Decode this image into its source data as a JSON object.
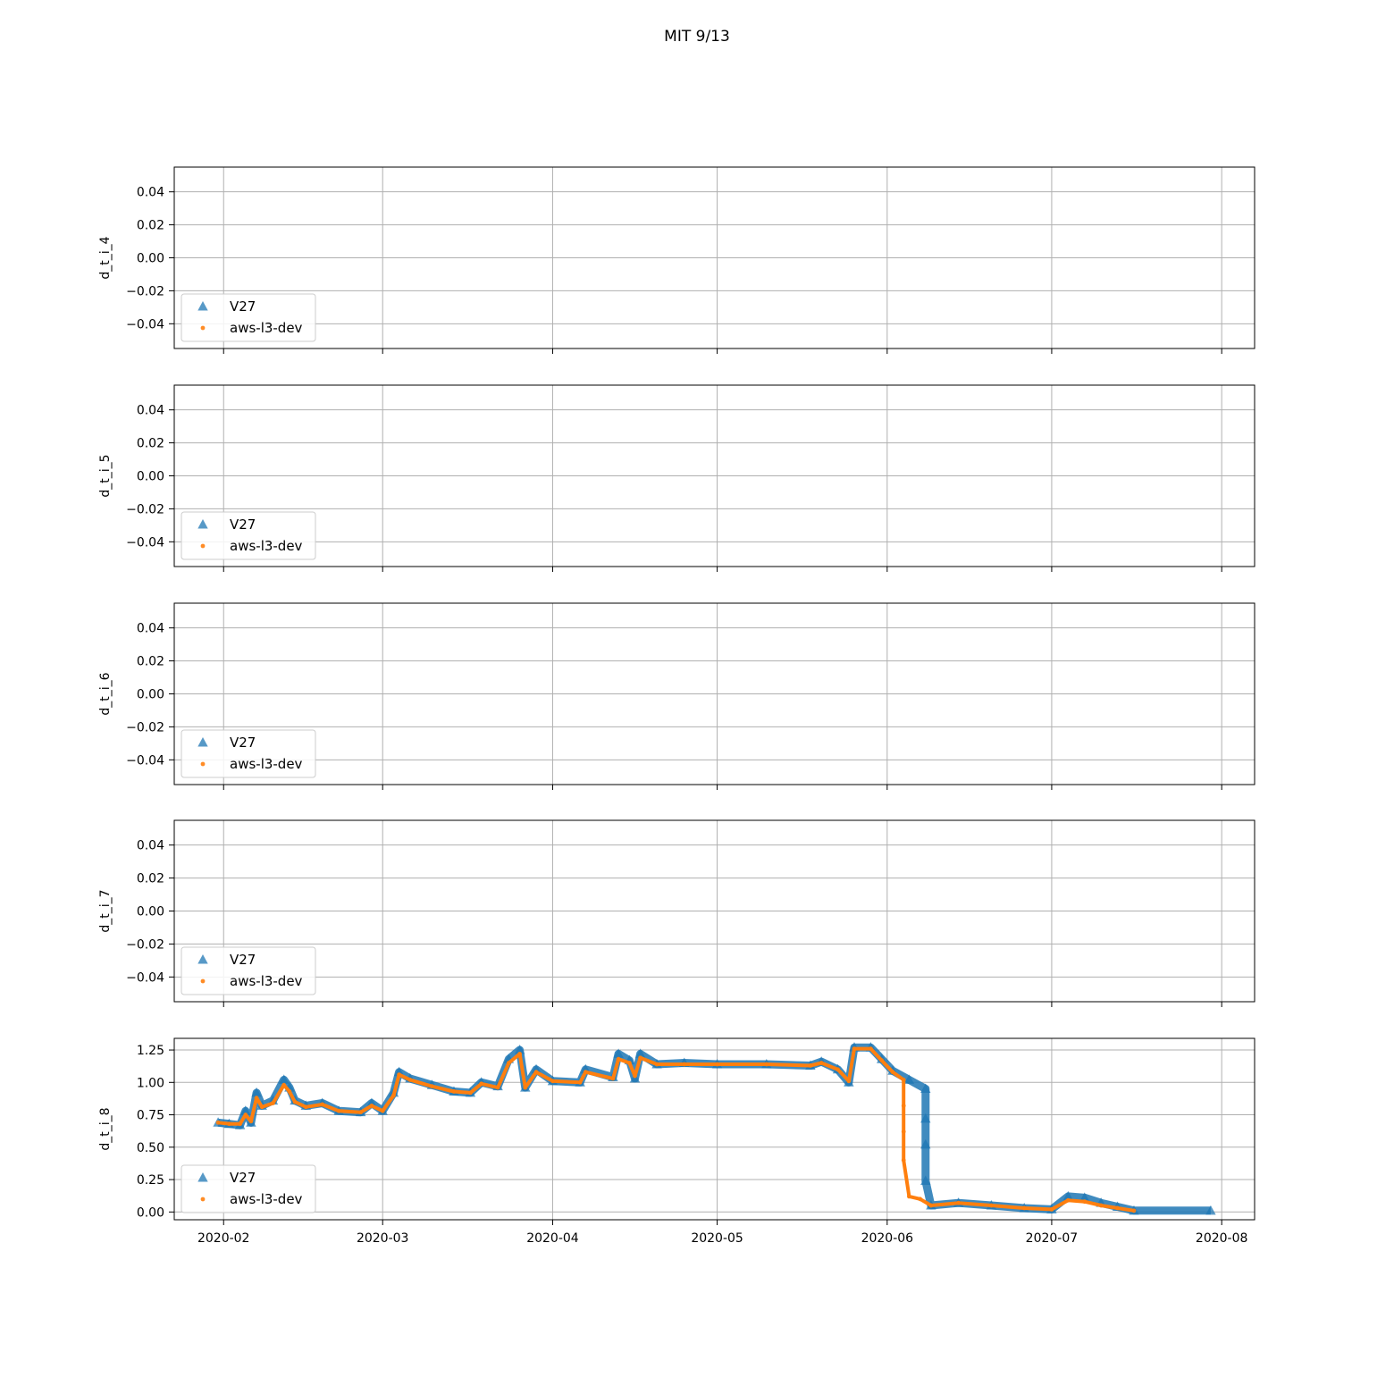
{
  "figure": {
    "suptitle": "MIT 9/13"
  },
  "chart_data": [
    {
      "type": "scatter",
      "ylabel": "d_t_i_4",
      "ylim": [
        -0.055,
        0.055
      ],
      "yticks": [
        0.04,
        0.02,
        0.0,
        -0.02,
        -0.04
      ],
      "ytick_labels": [
        "0.04",
        "0.02",
        "0.00",
        "−0.02",
        "−0.04"
      ],
      "xlim": [
        "2020-01-23",
        "2020-08-07"
      ],
      "xticks": [
        "2020-02-01",
        "2020-03-01",
        "2020-04-01",
        "2020-05-01",
        "2020-06-01",
        "2020-07-01",
        "2020-08-01"
      ],
      "xtick_labels_visible": false,
      "grid": true,
      "legend": "lower-left",
      "series": [
        {
          "name": "V27",
          "marker": "triangle",
          "color": "#1f77b4",
          "points": []
        },
        {
          "name": "aws-l3-dev",
          "marker": "dot",
          "color": "#ff7f0e",
          "points": []
        }
      ]
    },
    {
      "type": "scatter",
      "ylabel": "d_t_i_5",
      "ylim": [
        -0.055,
        0.055
      ],
      "yticks": [
        0.04,
        0.02,
        0.0,
        -0.02,
        -0.04
      ],
      "ytick_labels": [
        "0.04",
        "0.02",
        "0.00",
        "−0.02",
        "−0.04"
      ],
      "xlim": [
        "2020-01-23",
        "2020-08-07"
      ],
      "xticks": [
        "2020-02-01",
        "2020-03-01",
        "2020-04-01",
        "2020-05-01",
        "2020-06-01",
        "2020-07-01",
        "2020-08-01"
      ],
      "xtick_labels_visible": false,
      "grid": true,
      "legend": "lower-left",
      "series": [
        {
          "name": "V27",
          "marker": "triangle",
          "color": "#1f77b4",
          "points": []
        },
        {
          "name": "aws-l3-dev",
          "marker": "dot",
          "color": "#ff7f0e",
          "points": []
        }
      ]
    },
    {
      "type": "scatter",
      "ylabel": "d_t_i_6",
      "ylim": [
        -0.055,
        0.055
      ],
      "yticks": [
        0.04,
        0.02,
        0.0,
        -0.02,
        -0.04
      ],
      "ytick_labels": [
        "0.04",
        "0.02",
        "0.00",
        "−0.02",
        "−0.04"
      ],
      "xlim": [
        "2020-01-23",
        "2020-08-07"
      ],
      "xticks": [
        "2020-02-01",
        "2020-03-01",
        "2020-04-01",
        "2020-05-01",
        "2020-06-01",
        "2020-07-01",
        "2020-08-01"
      ],
      "xtick_labels_visible": false,
      "grid": true,
      "legend": "lower-left",
      "series": [
        {
          "name": "V27",
          "marker": "triangle",
          "color": "#1f77b4",
          "points": []
        },
        {
          "name": "aws-l3-dev",
          "marker": "dot",
          "color": "#ff7f0e",
          "points": []
        }
      ]
    },
    {
      "type": "scatter",
      "ylabel": "d_t_i_7",
      "ylim": [
        -0.055,
        0.055
      ],
      "yticks": [
        0.04,
        0.02,
        0.0,
        -0.02,
        -0.04
      ],
      "ytick_labels": [
        "0.04",
        "0.02",
        "0.00",
        "−0.02",
        "−0.04"
      ],
      "xlim": [
        "2020-01-23",
        "2020-08-07"
      ],
      "xticks": [
        "2020-02-01",
        "2020-03-01",
        "2020-04-01",
        "2020-05-01",
        "2020-06-01",
        "2020-07-01",
        "2020-08-01"
      ],
      "xtick_labels_visible": false,
      "grid": true,
      "legend": "lower-left",
      "series": [
        {
          "name": "V27",
          "marker": "triangle",
          "color": "#1f77b4",
          "points": []
        },
        {
          "name": "aws-l3-dev",
          "marker": "dot",
          "color": "#ff7f0e",
          "points": []
        }
      ]
    },
    {
      "type": "scatter",
      "ylabel": "d_t_i_8",
      "ylim": [
        -0.06,
        1.34
      ],
      "yticks": [
        1.25,
        1.0,
        0.75,
        0.5,
        0.25,
        0.0
      ],
      "ytick_labels": [
        "1.25",
        "1.00",
        "0.75",
        "0.50",
        "0.25",
        "0.00"
      ],
      "xlim": [
        "2020-01-23",
        "2020-08-07"
      ],
      "xticks": [
        "2020-02-01",
        "2020-03-01",
        "2020-04-01",
        "2020-05-01",
        "2020-06-01",
        "2020-07-01",
        "2020-08-01"
      ],
      "xtick_labels": [
        "2020-02",
        "2020-03",
        "2020-04",
        "2020-05",
        "2020-06",
        "2020-07",
        "2020-08"
      ],
      "xtick_labels_visible": true,
      "grid": true,
      "legend": "lower-left",
      "series": [
        {
          "name": "V27",
          "marker": "triangle",
          "color": "#1f77b4",
          "points": [
            [
              "2020-01-31",
              0.69
            ],
            [
              "2020-02-02",
              0.68
            ],
            [
              "2020-02-04",
              0.67
            ],
            [
              "2020-02-05",
              0.78
            ],
            [
              "2020-02-06",
              0.69
            ],
            [
              "2020-02-07",
              0.92
            ],
            [
              "2020-02-08",
              0.82
            ],
            [
              "2020-02-10",
              0.86
            ],
            [
              "2020-02-12",
              1.02
            ],
            [
              "2020-02-13",
              0.96
            ],
            [
              "2020-02-14",
              0.86
            ],
            [
              "2020-02-16",
              0.82
            ],
            [
              "2020-02-19",
              0.84
            ],
            [
              "2020-02-22",
              0.78
            ],
            [
              "2020-02-26",
              0.77
            ],
            [
              "2020-02-28",
              0.84
            ],
            [
              "2020-03-01",
              0.78
            ],
            [
              "2020-03-03",
              0.92
            ],
            [
              "2020-03-04",
              1.08
            ],
            [
              "2020-03-06",
              1.03
            ],
            [
              "2020-03-10",
              0.98
            ],
            [
              "2020-03-14",
              0.93
            ],
            [
              "2020-03-17",
              0.92
            ],
            [
              "2020-03-19",
              1.0
            ],
            [
              "2020-03-22",
              0.97
            ],
            [
              "2020-03-24",
              1.18
            ],
            [
              "2020-03-26",
              1.25
            ],
            [
              "2020-03-27",
              0.96
            ],
            [
              "2020-03-29",
              1.1
            ],
            [
              "2020-04-01",
              1.01
            ],
            [
              "2020-04-06",
              1.0
            ],
            [
              "2020-04-07",
              1.1
            ],
            [
              "2020-04-12",
              1.04
            ],
            [
              "2020-04-13",
              1.22
            ],
            [
              "2020-04-15",
              1.17
            ],
            [
              "2020-04-16",
              1.03
            ],
            [
              "2020-04-17",
              1.22
            ],
            [
              "2020-04-20",
              1.14
            ],
            [
              "2020-04-25",
              1.15
            ],
            [
              "2020-05-01",
              1.14
            ],
            [
              "2020-05-10",
              1.14
            ],
            [
              "2020-05-18",
              1.13
            ],
            [
              "2020-05-20",
              1.16
            ],
            [
              "2020-05-23",
              1.1
            ],
            [
              "2020-05-25",
              1.0
            ],
            [
              "2020-05-26",
              1.27
            ],
            [
              "2020-05-29",
              1.27
            ],
            [
              "2020-05-31",
              1.18
            ],
            [
              "2020-06-02",
              1.09
            ],
            [
              "2020-06-05",
              1.02
            ],
            [
              "2020-06-08",
              0.95
            ],
            [
              "2020-06-08",
              0.72
            ],
            [
              "2020-06-08",
              0.52
            ],
            [
              "2020-06-08",
              0.24
            ],
            [
              "2020-06-09",
              0.05
            ],
            [
              "2020-06-14",
              0.07
            ],
            [
              "2020-06-20",
              0.05
            ],
            [
              "2020-06-26",
              0.03
            ],
            [
              "2020-07-01",
              0.02
            ],
            [
              "2020-07-04",
              0.12
            ],
            [
              "2020-07-07",
              0.11
            ],
            [
              "2020-07-10",
              0.07
            ],
            [
              "2020-07-13",
              0.04
            ],
            [
              "2020-07-16",
              0.01
            ],
            [
              "2020-07-30",
              0.01
            ]
          ]
        },
        {
          "name": "aws-l3-dev",
          "marker": "dot",
          "color": "#ff7f0e",
          "points": [
            [
              "2020-01-31",
              0.69
            ],
            [
              "2020-02-02",
              0.68
            ],
            [
              "2020-02-04",
              0.68
            ],
            [
              "2020-02-05",
              0.75
            ],
            [
              "2020-02-06",
              0.7
            ],
            [
              "2020-02-07",
              0.88
            ],
            [
              "2020-02-08",
              0.81
            ],
            [
              "2020-02-10",
              0.84
            ],
            [
              "2020-02-12",
              0.98
            ],
            [
              "2020-02-13",
              0.93
            ],
            [
              "2020-02-14",
              0.85
            ],
            [
              "2020-02-16",
              0.81
            ],
            [
              "2020-02-19",
              0.83
            ],
            [
              "2020-02-22",
              0.78
            ],
            [
              "2020-02-26",
              0.77
            ],
            [
              "2020-02-28",
              0.82
            ],
            [
              "2020-03-01",
              0.78
            ],
            [
              "2020-03-03",
              0.9
            ],
            [
              "2020-03-04",
              1.06
            ],
            [
              "2020-03-06",
              1.02
            ],
            [
              "2020-03-10",
              0.97
            ],
            [
              "2020-03-14",
              0.93
            ],
            [
              "2020-03-17",
              0.92
            ],
            [
              "2020-03-19",
              0.99
            ],
            [
              "2020-03-22",
              0.96
            ],
            [
              "2020-03-24",
              1.15
            ],
            [
              "2020-03-26",
              1.22
            ],
            [
              "2020-03-27",
              0.96
            ],
            [
              "2020-03-29",
              1.08
            ],
            [
              "2020-04-01",
              1.01
            ],
            [
              "2020-04-06",
              1.0
            ],
            [
              "2020-04-07",
              1.08
            ],
            [
              "2020-04-12",
              1.03
            ],
            [
              "2020-04-13",
              1.18
            ],
            [
              "2020-04-15",
              1.15
            ],
            [
              "2020-04-16",
              1.05
            ],
            [
              "2020-04-17",
              1.19
            ],
            [
              "2020-04-20",
              1.14
            ],
            [
              "2020-04-25",
              1.14
            ],
            [
              "2020-05-01",
              1.14
            ],
            [
              "2020-05-10",
              1.14
            ],
            [
              "2020-05-18",
              1.13
            ],
            [
              "2020-05-20",
              1.15
            ],
            [
              "2020-05-23",
              1.1
            ],
            [
              "2020-05-25",
              1.01
            ],
            [
              "2020-05-26",
              1.26
            ],
            [
              "2020-05-29",
              1.26
            ],
            [
              "2020-05-31",
              1.17
            ],
            [
              "2020-06-02",
              1.08
            ],
            [
              "2020-06-04",
              1.02
            ],
            [
              "2020-06-04",
              0.82
            ],
            [
              "2020-06-04",
              0.62
            ],
            [
              "2020-06-04",
              0.4
            ],
            [
              "2020-06-05",
              0.12
            ],
            [
              "2020-06-07",
              0.1
            ],
            [
              "2020-06-09",
              0.05
            ],
            [
              "2020-06-14",
              0.07
            ],
            [
              "2020-06-20",
              0.05
            ],
            [
              "2020-06-26",
              0.03
            ],
            [
              "2020-07-01",
              0.02
            ],
            [
              "2020-07-04",
              0.09
            ],
            [
              "2020-07-07",
              0.08
            ],
            [
              "2020-07-10",
              0.05
            ],
            [
              "2020-07-13",
              0.03
            ],
            [
              "2020-07-16",
              0.01
            ]
          ]
        }
      ]
    }
  ]
}
